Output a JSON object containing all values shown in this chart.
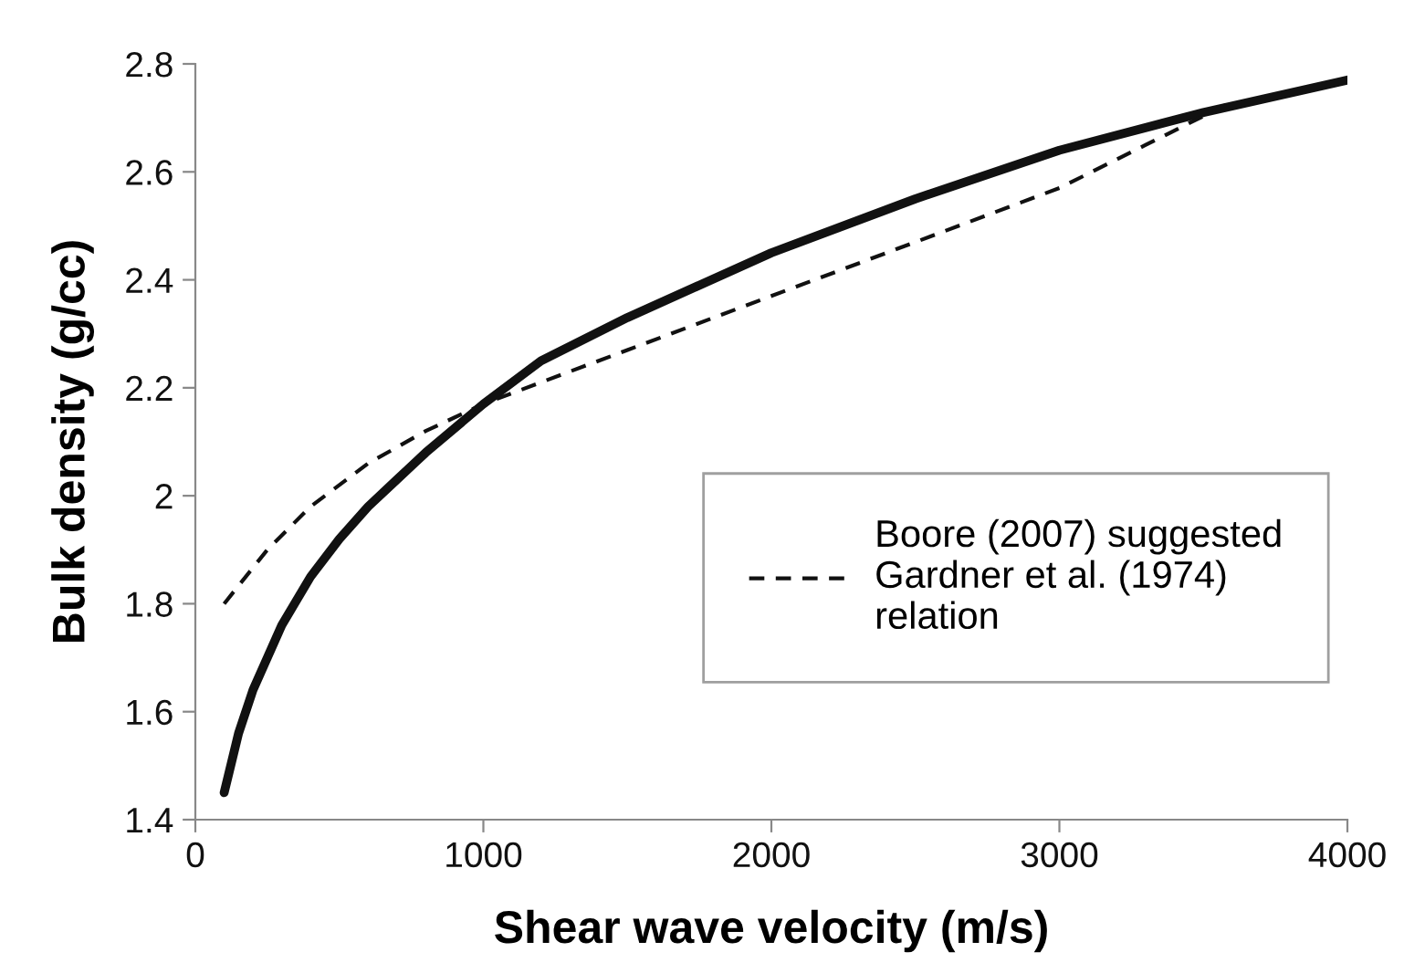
{
  "chart_data": {
    "type": "line",
    "xlabel": "Shear wave velocity (m/s)",
    "ylabel": "Bulk density (g/cc)",
    "xlim": [
      0,
      4000
    ],
    "xticks": [
      0,
      1000,
      2000,
      3000,
      4000
    ],
    "ylim": [
      1.4,
      2.8
    ],
    "yticks": [
      1.4,
      1.6,
      1.8,
      2,
      2.2,
      2.4,
      2.6,
      2.8
    ],
    "grid": false,
    "legend": "right",
    "marker": "none",
    "series": [
      {
        "color": "#111111",
        "line_style": "solid",
        "x": [
          100,
          150,
          200,
          300,
          400,
          500,
          600,
          700,
          800,
          1000,
          1200,
          1500,
          2000,
          2500,
          3000,
          3500,
          4000
        ],
        "values": [
          1.45,
          1.56,
          1.64,
          1.76,
          1.85,
          1.92,
          1.98,
          2.03,
          2.08,
          2.17,
          2.25,
          2.33,
          2.45,
          2.55,
          2.64,
          2.71,
          2.77
        ]
      },
      {
        "name": "Boore (2007) suggested\nGardner et al. (1974)\nrelation",
        "color": "#111111",
        "line_style": "dashed",
        "x": [
          100,
          250,
          400,
          600,
          800,
          1000,
          1200,
          1500,
          2000,
          2500,
          3000,
          3300,
          3600
        ],
        "values": [
          1.8,
          1.9,
          1.98,
          2.06,
          2.12,
          2.17,
          2.21,
          2.27,
          2.37,
          2.47,
          2.57,
          2.65,
          2.73
        ]
      }
    ]
  }
}
